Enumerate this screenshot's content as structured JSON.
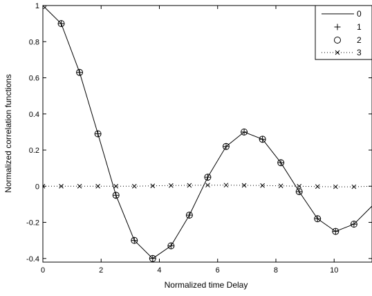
{
  "chart_data": {
    "type": "line",
    "title": "",
    "xlabel": "Normalized time Delay",
    "ylabel": "Normalized correlation functions",
    "xlim": [
      0,
      11.3
    ],
    "ylim": [
      -0.42,
      1.0
    ],
    "xticks": [
      0,
      2,
      4,
      6,
      8,
      10
    ],
    "xtick_labels": [
      "0",
      "2",
      "4",
      "6",
      "8",
      "10"
    ],
    "yticks": [
      -0.4,
      -0.2,
      0,
      0.2,
      0.4,
      0.6,
      0.8,
      1
    ],
    "ytick_labels": [
      "-0.4",
      "-0.2",
      "0",
      "0.2",
      "0.4",
      "0.6",
      "0.8",
      "1"
    ],
    "grid": false,
    "legend_position": "top-right",
    "series": [
      {
        "name": "0",
        "style": "solid-line",
        "x": [
          0,
          0.63,
          1.26,
          1.89,
          2.51,
          3.14,
          3.77,
          4.4,
          5.03,
          5.66,
          6.29,
          6.91,
          7.54,
          8.17,
          8.8,
          9.43,
          10.05,
          10.68,
          11.3
        ],
        "y": [
          1.0,
          0.9,
          0.63,
          0.29,
          -0.05,
          -0.3,
          -0.4,
          -0.33,
          -0.16,
          0.05,
          0.22,
          0.3,
          0.26,
          0.13,
          -0.03,
          -0.18,
          -0.25,
          -0.21,
          -0.11
        ]
      },
      {
        "name": "1",
        "style": "plus-markers",
        "x": [
          0,
          0.63,
          1.26,
          1.89,
          2.51,
          3.14,
          3.77,
          4.4,
          5.03,
          5.66,
          6.29,
          6.91,
          7.54,
          8.17,
          8.8,
          9.43,
          10.05,
          10.68
        ],
        "y": [
          1.0,
          0.9,
          0.63,
          0.29,
          -0.05,
          -0.3,
          -0.4,
          -0.33,
          -0.16,
          0.05,
          0.22,
          0.3,
          0.26,
          0.13,
          -0.03,
          -0.18,
          -0.25,
          -0.21
        ]
      },
      {
        "name": "2",
        "style": "circle-markers",
        "x": [
          0,
          0.63,
          1.26,
          1.89,
          2.51,
          3.14,
          3.77,
          4.4,
          5.03,
          5.66,
          6.29,
          6.91,
          7.54,
          8.17,
          8.8,
          9.43,
          10.05,
          10.68
        ],
        "y": [
          1.0,
          0.9,
          0.63,
          0.29,
          -0.05,
          -0.3,
          -0.4,
          -0.33,
          -0.16,
          0.05,
          0.22,
          0.3,
          0.26,
          0.13,
          -0.03,
          -0.18,
          -0.25,
          -0.21
        ]
      },
      {
        "name": "3",
        "style": "dotted-line-x-markers",
        "x": [
          0,
          0.63,
          1.26,
          1.89,
          2.51,
          3.14,
          3.77,
          4.4,
          5.03,
          5.66,
          6.29,
          6.91,
          7.54,
          8.17,
          8.8,
          9.43,
          10.05,
          10.68
        ],
        "y": [
          0,
          0,
          0,
          0,
          0,
          0,
          0.002,
          0.004,
          0.005,
          0.006,
          0.006,
          0.005,
          0.004,
          0.002,
          0,
          -0.002,
          -0.003,
          -0.003
        ]
      }
    ]
  }
}
